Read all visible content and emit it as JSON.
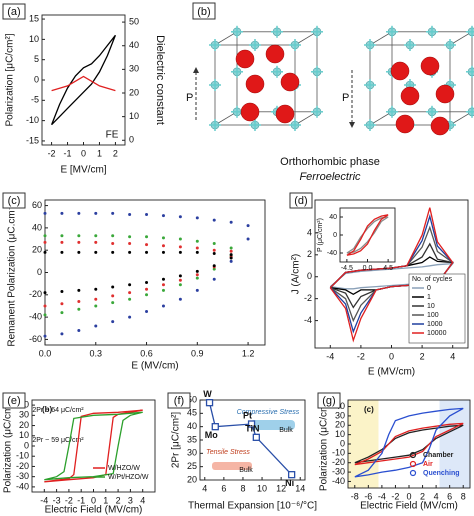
{
  "panel_b": {
    "panel": "(b)",
    "arrow_label_left": "P",
    "arrow_label_right": "P",
    "caption": "Orthorhombic phase",
    "subcaption": "Ferroelectric"
  },
  "chart_data": [
    {
      "type": "line",
      "panel": "(a)",
      "xlabel": "E [MV/cm]",
      "ylabel": "Polarization [μC/cm²]",
      "y2label": "Dielectric constant",
      "annotations": [
        "FE"
      ],
      "xlim": [
        -2.6,
        2.6
      ],
      "xticks": [
        -2,
        -1,
        0,
        1,
        2
      ],
      "ylim": [
        -16,
        16
      ],
      "yticks": [
        -15,
        -10,
        -5,
        0,
        5,
        10,
        15
      ],
      "y2lim": [
        -2,
        53
      ],
      "y2ticks": [
        0,
        10,
        20,
        30,
        40,
        50
      ],
      "series": [
        {
          "color": "#000000",
          "x": [
            -2,
            -1.5,
            -1,
            -0.5,
            0,
            0.5,
            1,
            1.5,
            2,
            1.5,
            1,
            0.5,
            0,
            -0.5,
            -1,
            -1.5,
            -2
          ],
          "values": [
            -11,
            -9,
            -7,
            -5,
            -3,
            -1,
            2,
            6,
            11,
            8.5,
            6,
            4,
            3,
            1,
            -2,
            -6,
            -11
          ]
        },
        {
          "color": "#e02020",
          "axis": "y2",
          "x": [
            -2,
            -1.5,
            -1,
            -0.5,
            0,
            0.5,
            1,
            1.5,
            2
          ],
          "values": [
            21,
            22,
            23,
            25,
            27,
            25,
            23,
            22,
            21
          ]
        }
      ]
    },
    {
      "type": "scatter",
      "panel": "(c)",
      "xlabel": "E (MV/cm)",
      "ylabel": "Remanent Polarization (μC.cm⁻²)",
      "xlim": [
        0,
        1.3
      ],
      "xticks": [
        {
          "value": 0,
          "label": "0.0"
        },
        0.3,
        0.6,
        0.9,
        1.2
      ],
      "ylim": [
        -65,
        65
      ],
      "yticks": [
        -60,
        -40,
        -20,
        0,
        20,
        40,
        60
      ],
      "series": [
        {
          "color": "#2b3fa0",
          "x": [
            0,
            0.1,
            0.2,
            0.3,
            0.4,
            0.5,
            0.6,
            0.7,
            0.8,
            0.9,
            1.0,
            1.1,
            1.2
          ],
          "values": [
            53,
            53,
            53,
            53,
            53,
            52,
            52,
            51,
            50,
            49,
            47,
            45,
            42
          ]
        },
        {
          "color": "#2b3fa0",
          "x": [
            0,
            0.1,
            0.2,
            0.3,
            0.4,
            0.5,
            0.6,
            0.7,
            0.8,
            0.9,
            1.0,
            1.1,
            1.2
          ],
          "values": [
            -57,
            -55,
            -52,
            -48,
            -44,
            -40,
            -35,
            -30,
            -24,
            -16,
            -6,
            10,
            30
          ]
        },
        {
          "color": "#3aa83a",
          "x": [
            0,
            0.1,
            0.2,
            0.3,
            0.4,
            0.5,
            0.6,
            0.7,
            0.8,
            0.9,
            1.0,
            1.1
          ],
          "values": [
            33,
            33,
            33,
            33,
            33,
            32,
            32,
            31,
            30,
            28,
            26,
            22
          ]
        },
        {
          "color": "#3aa83a",
          "x": [
            0,
            0.1,
            0.2,
            0.3,
            0.4,
            0.5,
            0.6,
            0.7,
            0.8,
            0.9,
            1.0,
            1.1
          ],
          "values": [
            -38,
            -36,
            -33,
            -30,
            -27,
            -24,
            -20,
            -16,
            -11,
            -5,
            3,
            15
          ]
        },
        {
          "color": "#e03030",
          "x": [
            0,
            0.1,
            0.2,
            0.3,
            0.4,
            0.5,
            0.6,
            0.7,
            0.8,
            0.9,
            1.0,
            1.1
          ],
          "values": [
            27,
            27,
            27,
            27,
            26,
            26,
            25,
            24,
            23,
            22,
            20,
            19
          ]
        },
        {
          "color": "#e03030",
          "x": [
            0,
            0.1,
            0.2,
            0.3,
            0.4,
            0.5,
            0.6,
            0.7,
            0.8,
            0.9,
            1.0,
            1.1
          ],
          "values": [
            -30,
            -28,
            -26,
            -24,
            -21,
            -18,
            -15,
            -11,
            -7,
            -2,
            5,
            14
          ]
        },
        {
          "color": "#000000",
          "x": [
            0,
            0.1,
            0.2,
            0.3,
            0.4,
            0.5,
            0.6,
            0.7,
            0.8,
            0.9,
            1.0,
            1.1
          ],
          "values": [
            18,
            18,
            18,
            18,
            18,
            18,
            18,
            18,
            18,
            18,
            17,
            16
          ]
        },
        {
          "color": "#000000",
          "x": [
            0,
            0.1,
            0.2,
            0.3,
            0.4,
            0.5,
            0.6,
            0.7,
            0.8,
            0.9,
            1.0,
            1.1
          ],
          "values": [
            -18,
            -17,
            -16,
            -15,
            -13,
            -11,
            -9,
            -6,
            -3,
            1,
            6,
            13
          ]
        }
      ]
    },
    {
      "type": "line",
      "panel": "(d)",
      "xlabel": "E (MV/cm)",
      "ylabel": "J (A/cm²)",
      "legend": "lower right",
      "legend_title": "No. of cycles",
      "xlim": [
        -5,
        5
      ],
      "xticks": [
        -4,
        -2,
        0,
        2,
        4
      ],
      "ylim": [
        -6.5,
        7
      ],
      "yticks": [
        -4,
        -2,
        0,
        2,
        4
      ],
      "series": [
        {
          "name": "0",
          "color": "#8aa0b8",
          "x": [
            -4,
            -3,
            -2.5,
            -2,
            -1,
            0,
            1,
            2,
            2.5,
            3,
            4,
            3,
            2.5,
            2,
            1,
            0,
            -1,
            -2,
            -2.5,
            -3,
            -4
          ],
          "values": [
            -0.9,
            0.3,
            0.4,
            0.5,
            0.6,
            0.7,
            0.8,
            0.9,
            1,
            1.1,
            1.2,
            -0.5,
            -0.6,
            -0.6,
            -0.7,
            -0.8,
            -0.9,
            -1,
            -1.1,
            -1.1,
            -0.9
          ]
        },
        {
          "name": "1",
          "color": "#000000",
          "x": [
            -4,
            -3,
            -2.5,
            -2,
            -1,
            0,
            1,
            2,
            2.5,
            3,
            4,
            3,
            2.5,
            2,
            1,
            0,
            -1,
            -2,
            -2.5,
            -3,
            -4
          ],
          "values": [
            -1,
            0.4,
            0.5,
            0.6,
            0.7,
            0.8,
            1.0,
            1.3,
            1.8,
            1.4,
            1.3,
            -0.6,
            -0.7,
            -0.7,
            -0.8,
            -0.9,
            -1.2,
            -1.2,
            -1.6,
            -1.2,
            -1
          ]
        },
        {
          "name": "10",
          "color": "#333333",
          "x": [
            -4,
            -3,
            -2.5,
            -2,
            -1,
            0,
            1,
            2,
            2.5,
            3,
            4,
            3,
            2.5,
            2,
            1,
            0,
            -1,
            -2,
            -2.5,
            -3,
            -4
          ],
          "values": [
            -1,
            0.4,
            0.5,
            0.6,
            0.7,
            0.8,
            1.0,
            1.8,
            3,
            1.6,
            1.3,
            -0.6,
            -0.7,
            -0.7,
            -0.8,
            -0.9,
            -1.2,
            -1.8,
            -2.8,
            -1.5,
            -1
          ]
        },
        {
          "name": "100",
          "color": "#555555",
          "x": [
            -4,
            -3,
            -2.5,
            -2,
            -1,
            0,
            1,
            2,
            2.5,
            3,
            4,
            3,
            2.5,
            2,
            1,
            0,
            -1,
            -2,
            -2.5,
            -3,
            -4
          ],
          "values": [
            -1,
            0.4,
            0.5,
            0.6,
            0.7,
            0.8,
            1.0,
            2.7,
            4.5,
            2.3,
            1.3,
            -0.6,
            -0.7,
            -0.7,
            -0.8,
            -0.9,
            -1.2,
            -2.6,
            -4,
            -2,
            -1
          ]
        },
        {
          "name": "1000",
          "color": "#1f3f9f",
          "x": [
            -4,
            -3,
            -2.5,
            -2,
            -1,
            0,
            1,
            2,
            2.5,
            3,
            4,
            3,
            2.5,
            2,
            1,
            0,
            -1,
            -2,
            -2.5,
            -3,
            -4
          ],
          "values": [
            -1,
            0.4,
            0.5,
            0.6,
            0.7,
            0.8,
            1.0,
            3.3,
            5.5,
            2.8,
            1.3,
            -0.6,
            -0.7,
            -0.7,
            -0.8,
            -0.9,
            -1.2,
            -3.3,
            -5,
            -2.5,
            -1
          ]
        },
        {
          "name": "10000",
          "color": "#e02020",
          "x": [
            -4,
            -3,
            -2.5,
            -2,
            -1,
            0,
            1,
            2,
            2.5,
            3,
            4,
            3,
            2.5,
            2,
            1,
            0,
            -1,
            -2,
            -2.5,
            -3,
            -4
          ],
          "values": [
            -1,
            0.4,
            0.5,
            0.6,
            0.7,
            0.8,
            1.0,
            3.8,
            6.3,
            3.2,
            1.3,
            -0.6,
            -0.7,
            -0.7,
            -0.8,
            -0.9,
            -1.2,
            -3.8,
            -5.8,
            -2.9,
            -1
          ]
        }
      ]
    },
    {
      "type": "line",
      "ylabel": "P (μC/cm²)",
      "xlim": [
        -6,
        6
      ],
      "xticks": [
        -4.5,
        {
          "value": 0,
          "label": "0.0"
        },
        4.5
      ],
      "ylim": [
        -60,
        60
      ],
      "yticks": [
        -40,
        0,
        40
      ],
      "series": [
        {
          "color": "#8a8a8a",
          "x": [
            -4.5,
            -3,
            -1.5,
            0,
            1.5,
            3,
            4.5,
            3,
            1.5,
            0,
            -1.5,
            -3,
            -4.5
          ],
          "values": [
            -40,
            -38,
            -30,
            -15,
            5,
            30,
            40,
            38,
            30,
            15,
            -5,
            -30,
            -40
          ]
        },
        {
          "color": "#e02020",
          "x": [
            -4.5,
            -3,
            -1.5,
            0,
            1.5,
            3,
            4.5,
            3,
            1.5,
            0,
            -1.5,
            -3,
            -4.5
          ],
          "values": [
            -45,
            -42,
            -35,
            -20,
            10,
            35,
            45,
            42,
            35,
            20,
            -10,
            -35,
            -45
          ]
        }
      ]
    },
    {
      "type": "line",
      "panel": "(e)",
      "xlabel": "Electric Field (MV/cm)",
      "ylabel": "Polarization (μC/cm²)",
      "legend": "lower right",
      "inner_label": "(b)",
      "annotations": [
        "2Pr ~ 64 μC/cm²",
        "2Pr ~ 59 μC/cm²"
      ],
      "xlim": [
        -5,
        5
      ],
      "xticks": [
        -4,
        -3,
        -2,
        -1,
        0,
        1,
        2,
        3,
        4
      ],
      "ylim": [
        -45,
        45
      ],
      "yticks": [
        -40,
        -30,
        -20,
        -10,
        0,
        10,
        20,
        30,
        40
      ],
      "series": [
        {
          "name": "W/HZO/W",
          "color": "#e02020",
          "x": [
            -4,
            -2,
            0,
            1,
            1.3,
            1.6,
            2,
            4,
            2,
            0,
            -1,
            -1.3,
            -1.6,
            -2,
            -4
          ],
          "values": [
            -35,
            -33,
            -31,
            -28,
            0,
            28,
            31,
            35,
            33,
            32,
            29,
            0,
            -28,
            -32,
            -35
          ]
        },
        {
          "name": "W/Pt/HZO/W",
          "color": "#2ca02c",
          "x": [
            -4,
            -2,
            0,
            1.6,
            2,
            2.4,
            3,
            4,
            2,
            0,
            -1.6,
            -2,
            -2.4,
            -3,
            -4
          ],
          "values": [
            -33,
            -31,
            -30,
            -27,
            0,
            25,
            30,
            33,
            31,
            30,
            27,
            0,
            -25,
            -30,
            -33
          ]
        }
      ]
    },
    {
      "type": "line",
      "marker": "square",
      "panel": "(f)",
      "xlabel": "Thermal Expansion [10⁻⁶/°C]",
      "ylabel": "2Pr [μC/cm²]",
      "annotations": [
        "Compressive Stress",
        "Tensile Stress",
        "Bulk",
        "Bulk"
      ],
      "xlim": [
        3.5,
        14.5
      ],
      "xticks": [
        4,
        6,
        8,
        10,
        12,
        14
      ],
      "ylim": [
        20,
        50
      ],
      "yticks": [
        20,
        25,
        30,
        35,
        40,
        45,
        50
      ],
      "point_labels": [
        "W",
        "Mo",
        "Pt",
        "TiN",
        "Ni"
      ],
      "series": [
        {
          "color": "#2a4fa8",
          "x": [
            4.5,
            5.1,
            8.9,
            9.4,
            13.1
          ],
          "values": [
            49,
            40,
            41,
            36,
            22
          ]
        }
      ]
    },
    {
      "type": "line",
      "panel": "(g)",
      "xlabel": "Electric Field (MV/cm)",
      "ylabel": "Polarization (μC/cm²)",
      "legend": "lower right",
      "inner_label": "(c)",
      "xlim": [
        -9,
        9
      ],
      "xticks": [
        -8,
        -6,
        -4,
        -2,
        0,
        2,
        4,
        6,
        8
      ],
      "ylim": [
        -47,
        47
      ],
      "yticks": [
        -40,
        -30,
        -20,
        -10,
        0,
        10,
        20,
        30,
        40
      ],
      "series": [
        {
          "name": "Chamber",
          "color": "#222222",
          "x": [
            -8,
            -6,
            -4,
            -2,
            0,
            2,
            3,
            4,
            6,
            8,
            6,
            4,
            2,
            0,
            -2,
            -3,
            -4,
            -6,
            -8
          ],
          "values": [
            -20,
            -18,
            -16,
            -14,
            -12,
            -6,
            0,
            6,
            13,
            20,
            19,
            17,
            15,
            12,
            6,
            0,
            -6,
            -14,
            -20
          ]
        },
        {
          "name": "Air",
          "color": "#e02020",
          "x": [
            -8,
            -6,
            -4,
            -2,
            0,
            2,
            3,
            4,
            6,
            8,
            6,
            4,
            2,
            0,
            -2,
            -3,
            -4,
            -6,
            -8
          ],
          "values": [
            -22,
            -20,
            -18,
            -16,
            -14,
            -8,
            0,
            8,
            15,
            22,
            21,
            19,
            17,
            14,
            8,
            0,
            -8,
            -16,
            -22
          ]
        },
        {
          "name": "Quenching",
          "color": "#2a4fd0",
          "x": [
            -8,
            -6,
            -4,
            -2,
            0,
            2,
            3,
            4,
            6,
            8,
            6,
            4,
            2,
            0,
            -2,
            -3,
            -4,
            -6,
            -8
          ],
          "values": [
            -35,
            -33,
            -30,
            -28,
            -25,
            -20,
            -5,
            15,
            30,
            38,
            37,
            35,
            33,
            30,
            25,
            10,
            -10,
            -28,
            -35
          ]
        }
      ]
    }
  ]
}
